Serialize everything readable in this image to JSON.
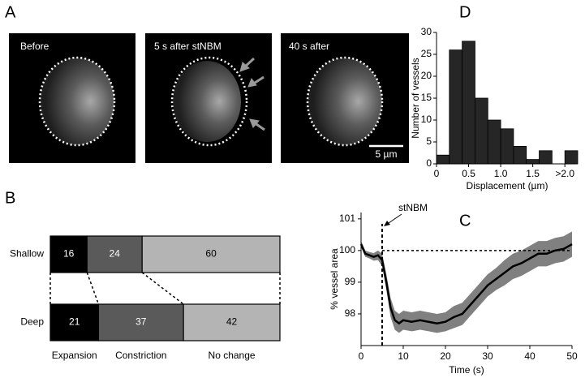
{
  "panel_labels": [
    "A",
    "B",
    "C",
    "D"
  ],
  "images": {
    "captions": [
      "Before",
      "5 s after stNBM",
      "40 s after"
    ],
    "scale_bar": "5 µm"
  },
  "chart_data": [
    {
      "type": "bar",
      "orientation": "horizontal",
      "stacked": true,
      "categories": [
        "Shallow",
        "Deep"
      ],
      "series": [
        {
          "name": "Expansion",
          "color": "#000000",
          "values": [
            16,
            21
          ]
        },
        {
          "name": "Constriction",
          "color": "#5a5a5a",
          "values": [
            24,
            37
          ]
        },
        {
          "name": "No change",
          "color": "#b4b4b4",
          "values": [
            60,
            42
          ]
        }
      ]
    },
    {
      "type": "line",
      "x_label": "Time (s)",
      "y_label": "% vessel area",
      "annotation": "stNBM",
      "stimulus_x": 5,
      "baseline_y": 100,
      "x": [
        0,
        1,
        2,
        3,
        4,
        5,
        6,
        7,
        8,
        9,
        10,
        12,
        14,
        16,
        18,
        20,
        22,
        24,
        26,
        28,
        30,
        32,
        34,
        36,
        38,
        40,
        42,
        44,
        46,
        48,
        50
      ],
      "series": [
        {
          "color": "#000000",
          "values": [
            100.2,
            99.9,
            99.85,
            99.8,
            99.85,
            99.7,
            99.0,
            98.2,
            97.8,
            97.7,
            97.8,
            97.75,
            97.8,
            97.75,
            97.7,
            97.75,
            97.9,
            98.0,
            98.3,
            98.6,
            98.9,
            99.1,
            99.3,
            99.5,
            99.6,
            99.75,
            99.9,
            99.9,
            100.0,
            100.05,
            100.2
          ]
        }
      ],
      "band": {
        "color": "#808080",
        "lower": [
          100.1,
          99.8,
          99.75,
          99.68,
          99.7,
          99.5,
          98.75,
          97.9,
          97.5,
          97.4,
          97.5,
          97.45,
          97.5,
          97.45,
          97.4,
          97.45,
          97.55,
          97.65,
          97.95,
          98.25,
          98.55,
          98.75,
          98.9,
          99.1,
          99.2,
          99.35,
          99.5,
          99.5,
          99.6,
          99.65,
          99.8
        ],
        "upper": [
          100.3,
          100.0,
          99.95,
          99.92,
          100.0,
          99.9,
          99.25,
          98.5,
          98.1,
          98.0,
          98.1,
          98.05,
          98.1,
          98.05,
          98.0,
          98.05,
          98.25,
          98.35,
          98.65,
          98.95,
          99.25,
          99.45,
          99.7,
          99.9,
          100.0,
          100.15,
          100.3,
          100.3,
          100.4,
          100.45,
          100.6
        ]
      },
      "xlim": [
        0,
        50
      ],
      "xticks": [
        0,
        10,
        20,
        30,
        40,
        50
      ],
      "ylim": [
        97,
        101.2
      ],
      "yticks": [
        98,
        99,
        100,
        101
      ]
    },
    {
      "type": "histogram",
      "x_label": "Displacement (µm)",
      "y_label": "Number of vessels",
      "color": "#262626",
      "bins": [
        0,
        0.2,
        0.4,
        0.6,
        0.8,
        1.0,
        1.2,
        1.4,
        1.6,
        1.8,
        2.0,
        2.2
      ],
      "counts": [
        2,
        26,
        28,
        15,
        10,
        8,
        4,
        1,
        3,
        0,
        3
      ],
      "xlim": [
        0,
        2.2
      ],
      "xticks": [
        0,
        0.5,
        {
          "value": 1,
          "label": "1.0"
        },
        1.5,
        {
          "value": 2,
          "label": ">2.0"
        }
      ],
      "ylim": [
        0,
        30
      ],
      "yticks": [
        0,
        5,
        10,
        15,
        20,
        25,
        30
      ]
    }
  ]
}
